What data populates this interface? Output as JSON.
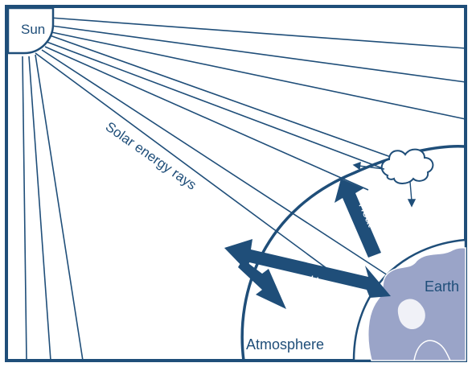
{
  "labels": {
    "sun": "Sun",
    "rays": "Solar energy rays",
    "heat_upper": "Heat",
    "heat_lower": "Heat",
    "earth": "Earth",
    "atmosphere": "Atmosphere"
  },
  "colors": {
    "frame": "#1f4e79",
    "line": "#1f4e79",
    "arrow": "#1f4e79",
    "arrow_text": "#ffffff",
    "earth_land": "#9aa4c8",
    "earth_ocean": "#ffffff",
    "background": "#ffffff"
  }
}
